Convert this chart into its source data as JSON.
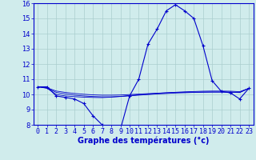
{
  "xlabel": "Graphe des températures (°c)",
  "hours": [
    0,
    1,
    2,
    3,
    4,
    5,
    6,
    7,
    8,
    9,
    10,
    11,
    12,
    13,
    14,
    15,
    16,
    17,
    18,
    19,
    20,
    21,
    22,
    23
  ],
  "temp_main": [
    10.5,
    10.5,
    9.9,
    9.8,
    9.7,
    9.4,
    8.6,
    8.0,
    7.8,
    7.7,
    9.9,
    11.0,
    13.3,
    14.3,
    15.5,
    15.9,
    15.5,
    15.0,
    13.2,
    10.9,
    10.2,
    10.1,
    9.7,
    10.4
  ],
  "temp_line2": [
    10.5,
    10.4,
    10.0,
    9.9,
    9.85,
    9.82,
    9.8,
    9.79,
    9.82,
    9.87,
    9.93,
    9.98,
    10.02,
    10.07,
    10.11,
    10.14,
    10.17,
    10.19,
    10.21,
    10.22,
    10.22,
    10.21,
    10.18,
    10.4
  ],
  "temp_line3": [
    10.5,
    10.42,
    10.13,
    10.03,
    9.95,
    9.9,
    9.86,
    9.84,
    9.84,
    9.86,
    9.9,
    9.95,
    9.99,
    10.03,
    10.06,
    10.09,
    10.11,
    10.13,
    10.14,
    10.15,
    10.15,
    10.14,
    10.12,
    10.4
  ],
  "temp_line4": [
    10.5,
    10.44,
    10.22,
    10.13,
    10.06,
    10.01,
    9.97,
    9.95,
    9.95,
    9.96,
    9.99,
    10.02,
    10.05,
    10.08,
    10.1,
    10.12,
    10.14,
    10.15,
    10.16,
    10.16,
    10.16,
    10.16,
    10.13,
    10.4
  ],
  "line_color": "#0000cc",
  "bg_color": "#d0ecec",
  "grid_color": "#aacece",
  "ylim_min": 8,
  "ylim_max": 16,
  "yticks": [
    8,
    9,
    10,
    11,
    12,
    13,
    14,
    15,
    16
  ],
  "tick_fontsize": 6.0,
  "xlabel_fontsize": 7.0
}
